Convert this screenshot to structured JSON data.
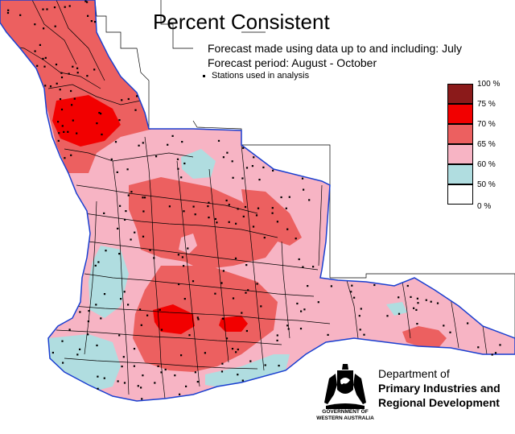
{
  "title": "Percent Consistent",
  "forecast_made": "Forecast made using data up to and including: July",
  "forecast_period": "Forecast period: August - October",
  "stations_note": "Stations used in analysis",
  "legend": {
    "labels": [
      "100 %",
      "75 %",
      "70 %",
      "65 %",
      "60 %",
      "50 %",
      "0 %"
    ],
    "colors": [
      "#8b1a1a",
      "#f20000",
      "#ec6060",
      "#f7b4c4",
      "#b0dde0",
      "#ffffff"
    ]
  },
  "department": {
    "line1": "Department of",
    "line2": "Primary Industries and",
    "line3": "Regional Development",
    "gov1": "GOVERNMENT OF",
    "gov2": "WESTERN AUSTRALIA"
  },
  "colors": {
    "coast": "#1a3fd0",
    "boundary": "#000000",
    "pink": "#f7b4c4",
    "red_light": "#ec6060",
    "red": "#f20000",
    "cyan": "#b0dde0"
  }
}
